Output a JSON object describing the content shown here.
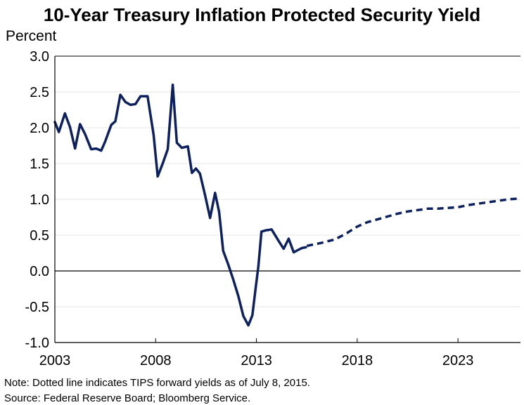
{
  "chart_data": {
    "type": "line",
    "title": "10-Year Treasury Inflation Protected Security Yield",
    "ylabel": "Percent",
    "xlabel": "",
    "ylim": [
      -1.0,
      3.0
    ],
    "xlim": [
      2003,
      2026.1
    ],
    "yticks": [
      "3.0",
      "2.5",
      "2.0",
      "1.5",
      "1.0",
      "0.5",
      "0.0",
      "-0.5",
      "-1.0"
    ],
    "xticks": [
      "2003",
      "2008",
      "2013",
      "2018",
      "2023"
    ],
    "grid": true,
    "legend": "none",
    "line_color": "#0d2060",
    "series": [
      {
        "style": "solid",
        "x": [
          2003.0,
          2003.2,
          2003.5,
          2003.75,
          2004.0,
          2004.25,
          2004.5,
          2004.8,
          2005.05,
          2005.3,
          2005.5,
          2005.8,
          2006.0,
          2006.25,
          2006.5,
          2006.75,
          2007.0,
          2007.25,
          2007.5,
          2007.6,
          2007.9,
          2008.1,
          2008.35,
          2008.6,
          2008.85,
          2009.05,
          2009.3,
          2009.6,
          2009.8,
          2010.0,
          2010.2,
          2010.45,
          2010.7,
          2010.95,
          2011.15,
          2011.35,
          2011.6,
          2011.85,
          2012.1,
          2012.35,
          2012.6,
          2012.8,
          2012.95,
          2013.1,
          2013.25,
          2013.5,
          2013.55,
          2013.75,
          2014.1,
          2014.35,
          2014.6,
          2014.85,
          2015.05,
          2015.25,
          2015.45
        ],
        "y": [
          2.08,
          1.94,
          2.2,
          2.01,
          1.71,
          2.05,
          1.91,
          1.7,
          1.71,
          1.68,
          1.81,
          2.04,
          2.09,
          2.46,
          2.36,
          2.32,
          2.33,
          2.44,
          2.44,
          2.44,
          1.9,
          1.32,
          1.5,
          1.7,
          2.6,
          1.79,
          1.72,
          1.74,
          1.37,
          1.43,
          1.36,
          1.06,
          0.74,
          1.09,
          0.82,
          0.28,
          0.09,
          -0.12,
          -0.35,
          -0.63,
          -0.76,
          -0.62,
          -0.27,
          0.07,
          0.55,
          0.57,
          0.57,
          0.58,
          0.42,
          0.31,
          0.45,
          0.26,
          0.29,
          0.32,
          0.33
        ]
      },
      {
        "style": "dotted",
        "x": [
          2015.5,
          2016.2,
          2016.9,
          2017.5,
          2018.0,
          2018.5,
          2019.0,
          2019.5,
          2020.0,
          2020.5,
          2021.0,
          2021.5,
          2022.0,
          2022.5,
          2023.0,
          2023.5,
          2024.0,
          2024.5,
          2025.0,
          2025.5,
          2026.0
        ],
        "y": [
          0.35,
          0.39,
          0.44,
          0.53,
          0.62,
          0.68,
          0.72,
          0.76,
          0.8,
          0.83,
          0.85,
          0.87,
          0.87,
          0.88,
          0.89,
          0.92,
          0.94,
          0.96,
          0.98,
          1.0,
          1.01
        ]
      }
    ]
  },
  "footnotes": {
    "note": "Note: Dotted line indicates TIPS forward yields as of July 8, 2015.",
    "source": "Source: Federal Reserve Board; Bloomberg Service."
  }
}
